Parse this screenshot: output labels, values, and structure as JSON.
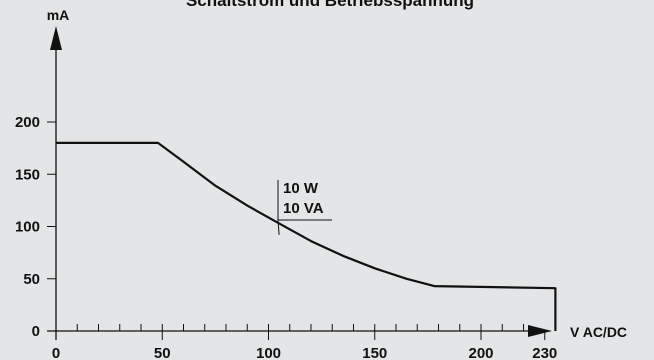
{
  "chart_data": {
    "type": "line",
    "title": "Schaltstrom und Betriebsspannung",
    "xlabel": "V AC/DC",
    "ylabel": "mA",
    "xlim": [
      0,
      250
    ],
    "ylim": [
      0,
      250
    ],
    "x_ticks": [
      0,
      50,
      100,
      150,
      200,
      230
    ],
    "x_minor_step": 10,
    "y_ticks": [
      0,
      50,
      100,
      150,
      200
    ],
    "series": [
      {
        "x": [
          0,
          48,
          60,
          75,
          90,
          105,
          120,
          135,
          150,
          165,
          178,
          235,
          235
        ],
        "y": [
          180,
          180,
          162,
          139,
          120,
          103,
          86,
          72,
          60,
          50,
          43,
          41,
          0
        ]
      }
    ],
    "annotations": [
      {
        "lines": [
          "10 W",
          "10 VA"
        ],
        "x": 105,
        "y": 92
      }
    ],
    "grid": false,
    "legend": false,
    "colors": {
      "background": "#e3e5e6",
      "line": "#111111"
    }
  }
}
